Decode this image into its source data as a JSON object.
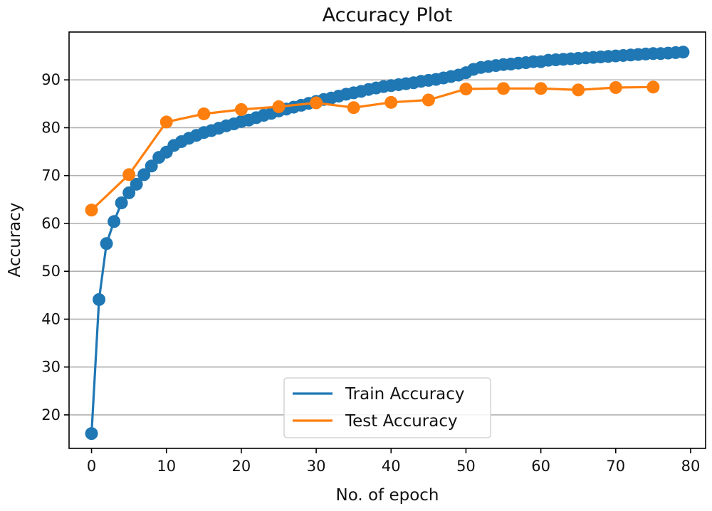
{
  "chart_data": {
    "type": "line",
    "title": "Accuracy Plot",
    "xlabel": "No. of epoch",
    "ylabel": "Accuracy",
    "xlim": [
      -3,
      82
    ],
    "ylim": [
      13,
      100
    ],
    "xticks": [
      0,
      10,
      20,
      30,
      40,
      50,
      60,
      70,
      80
    ],
    "yticks": [
      20,
      30,
      40,
      50,
      60,
      70,
      80,
      90
    ],
    "grid": "horizontal",
    "legend_position": "lower-center",
    "series": [
      {
        "name": "Train Accuracy",
        "color": "#1f77b4",
        "x": [
          0,
          1,
          2,
          3,
          4,
          5,
          6,
          7,
          8,
          9,
          10,
          11,
          12,
          13,
          14,
          15,
          16,
          17,
          18,
          19,
          20,
          21,
          22,
          23,
          24,
          25,
          26,
          27,
          28,
          29,
          30,
          31,
          32,
          33,
          34,
          35,
          36,
          37,
          38,
          39,
          40,
          41,
          42,
          43,
          44,
          45,
          46,
          47,
          48,
          49,
          50,
          51,
          52,
          53,
          54,
          55,
          56,
          57,
          58,
          59,
          60,
          61,
          62,
          63,
          64,
          65,
          66,
          67,
          68,
          69,
          70,
          71,
          72,
          73,
          74,
          75,
          76,
          77,
          78,
          79
        ],
        "values": [
          16.1,
          44.1,
          55.8,
          60.4,
          64.3,
          66.4,
          68.2,
          70.2,
          72.0,
          73.8,
          74.9,
          76.3,
          77.1,
          77.8,
          78.4,
          79.0,
          79.4,
          79.9,
          80.4,
          80.8,
          81.3,
          81.6,
          82.1,
          82.6,
          83.0,
          83.5,
          83.9,
          84.3,
          84.7,
          85.1,
          85.5,
          85.9,
          86.2,
          86.6,
          87.0,
          87.3,
          87.6,
          88.0,
          88.3,
          88.6,
          88.8,
          89.0,
          89.2,
          89.4,
          89.7,
          89.9,
          90.1,
          90.4,
          90.7,
          91.0,
          91.5,
          92.2,
          92.6,
          92.8,
          93.0,
          93.2,
          93.3,
          93.5,
          93.6,
          93.8,
          93.8,
          94.1,
          94.2,
          94.3,
          94.4,
          94.5,
          94.6,
          94.7,
          94.8,
          94.9,
          95.0,
          95.1,
          95.2,
          95.3,
          95.4,
          95.5,
          95.5,
          95.6,
          95.7,
          95.8
        ]
      },
      {
        "name": "Test Accuracy",
        "color": "#ff7f0e",
        "x": [
          0,
          5,
          10,
          15,
          20,
          25,
          30,
          35,
          40,
          45,
          50,
          55,
          60,
          65,
          70,
          75
        ],
        "values": [
          62.8,
          70.2,
          81.2,
          82.9,
          83.8,
          84.4,
          85.2,
          84.2,
          85.3,
          85.8,
          88.1,
          88.2,
          88.2,
          87.9,
          88.4,
          88.5
        ]
      }
    ]
  }
}
